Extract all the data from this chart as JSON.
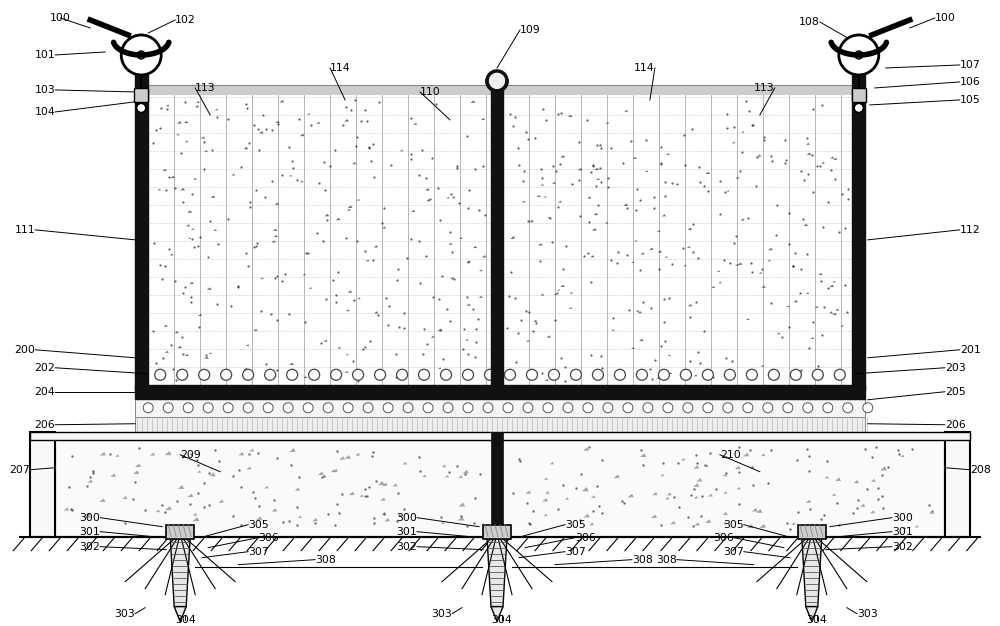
{
  "bg_color": "#ffffff",
  "figsize": [
    10.0,
    6.26
  ],
  "dpi": 100,
  "labels": {
    "top_left": [
      "100",
      "102",
      "101",
      "103",
      "104",
      "111",
      "200"
    ],
    "top_right": [
      "100",
      "108",
      "107",
      "106",
      "105",
      "112",
      "201"
    ],
    "mid_left": [
      "202",
      "204",
      "206"
    ],
    "mid_right": [
      "203",
      "205",
      "206"
    ],
    "center_top": [
      "109",
      "110",
      "113",
      "114"
    ],
    "lower": [
      "207",
      "208",
      "209",
      "210"
    ],
    "piles": [
      "300",
      "301",
      "302",
      "303",
      "304",
      "305",
      "306",
      "307",
      "308"
    ]
  }
}
